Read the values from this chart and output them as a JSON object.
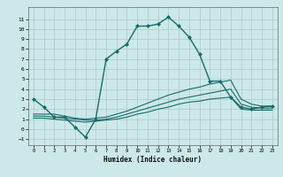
{
  "xlabel": "Humidex (Indice chaleur)",
  "ylabel": "",
  "xlim": [
    -0.5,
    23.5
  ],
  "ylim": [
    -1.6,
    12.2
  ],
  "yticks": [
    -1,
    0,
    1,
    2,
    3,
    4,
    5,
    6,
    7,
    8,
    9,
    10,
    11
  ],
  "xticks": [
    0,
    1,
    2,
    3,
    4,
    5,
    6,
    7,
    8,
    9,
    10,
    11,
    12,
    13,
    14,
    15,
    16,
    17,
    18,
    19,
    20,
    21,
    22,
    23
  ],
  "bg_color": "#cce8e8",
  "grid_color": "#b0c8c8",
  "line_color": "#1a6b6b",
  "lines": [
    {
      "x": [
        0,
        1,
        2,
        3,
        4,
        5,
        6,
        7,
        8,
        9,
        10,
        11,
        12,
        13,
        14,
        15,
        16,
        17,
        18,
        19,
        20,
        21,
        22,
        23
      ],
      "y": [
        3.0,
        2.2,
        1.2,
        1.2,
        0.2,
        -0.8,
        1.0,
        7.0,
        7.8,
        8.5,
        10.3,
        10.3,
        10.5,
        11.2,
        10.3,
        9.2,
        7.5,
        4.8,
        4.8,
        3.2,
        2.2,
        2.0,
        2.2,
        2.3
      ],
      "marker": "D",
      "markersize": 2.0,
      "linewidth": 1.0
    },
    {
      "x": [
        0,
        1,
        2,
        3,
        4,
        5,
        6,
        7,
        8,
        9,
        10,
        11,
        12,
        13,
        14,
        15,
        16,
        17,
        18,
        19,
        20,
        21,
        22,
        23
      ],
      "y": [
        1.5,
        1.5,
        1.5,
        1.3,
        1.1,
        1.0,
        1.1,
        1.2,
        1.5,
        1.8,
        2.2,
        2.6,
        3.0,
        3.4,
        3.7,
        4.0,
        4.2,
        4.5,
        4.7,
        4.9,
        3.0,
        2.5,
        2.3,
        2.3
      ],
      "marker": null,
      "markersize": 0,
      "linewidth": 0.8
    },
    {
      "x": [
        0,
        1,
        2,
        3,
        4,
        5,
        6,
        7,
        8,
        9,
        10,
        11,
        12,
        13,
        14,
        15,
        16,
        17,
        18,
        19,
        20,
        21,
        22,
        23
      ],
      "y": [
        1.3,
        1.3,
        1.2,
        1.1,
        1.0,
        0.9,
        0.9,
        1.0,
        1.2,
        1.5,
        1.8,
        2.1,
        2.4,
        2.7,
        3.0,
        3.2,
        3.4,
        3.6,
        3.8,
        4.0,
        2.5,
        2.2,
        2.1,
        2.1
      ],
      "marker": null,
      "markersize": 0,
      "linewidth": 0.8
    },
    {
      "x": [
        0,
        1,
        2,
        3,
        4,
        5,
        6,
        7,
        8,
        9,
        10,
        11,
        12,
        13,
        14,
        15,
        16,
        17,
        18,
        19,
        20,
        21,
        22,
        23
      ],
      "y": [
        1.1,
        1.1,
        1.0,
        0.9,
        0.8,
        0.7,
        0.8,
        0.9,
        1.0,
        1.2,
        1.5,
        1.7,
        2.0,
        2.2,
        2.5,
        2.7,
        2.8,
        3.0,
        3.1,
        3.2,
        2.0,
        1.9,
        1.9,
        1.9
      ],
      "marker": null,
      "markersize": 0,
      "linewidth": 0.8
    }
  ]
}
